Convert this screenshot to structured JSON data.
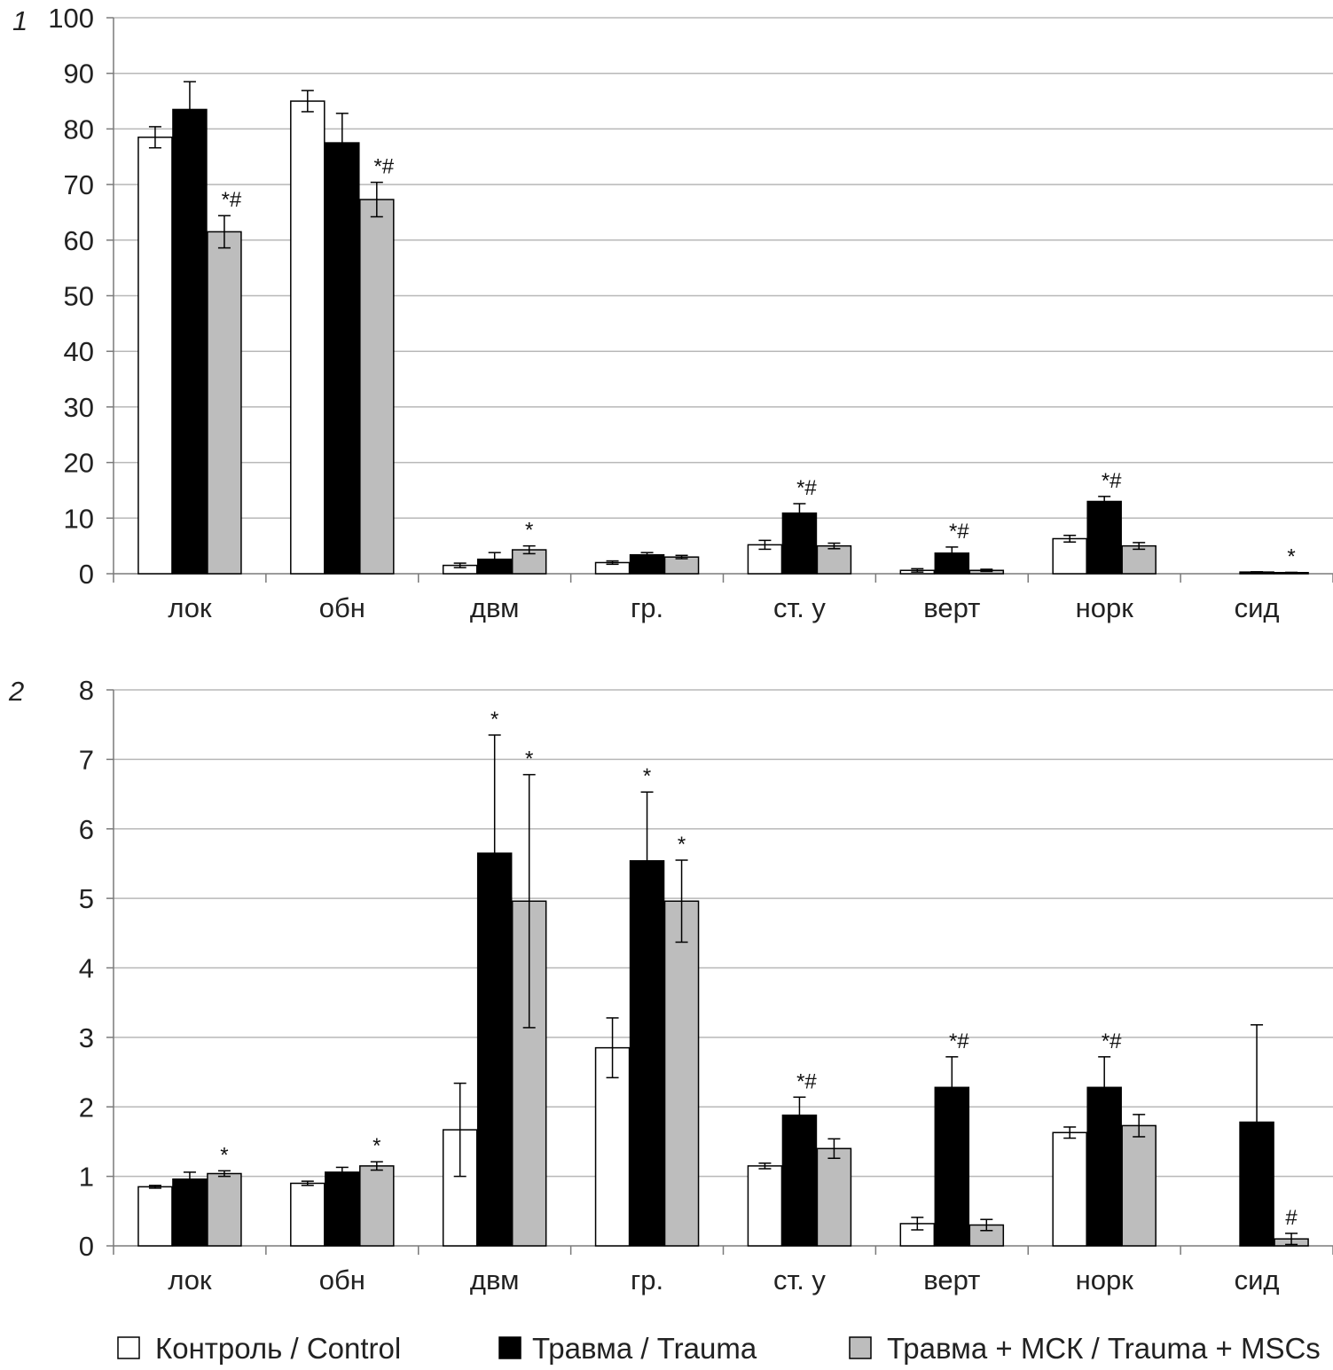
{
  "chart_data": [
    {
      "type": "bar",
      "panel_label": "1",
      "categories": [
        "лок",
        "обн",
        "двм",
        "гр.",
        "ст. у",
        "верт",
        "норк",
        "сид"
      ],
      "ylim": [
        0,
        100
      ],
      "yticks": [
        0,
        10,
        20,
        30,
        40,
        50,
        60,
        70,
        80,
        90,
        100
      ],
      "grid": true,
      "series": [
        {
          "name": "Контроль / Control",
          "values": [
            78.5,
            85.0,
            1.5,
            2.0,
            5.2,
            0.6,
            6.3,
            0.0
          ],
          "errors": [
            1.9,
            1.9,
            0.4,
            0.3,
            0.8,
            0.3,
            0.6,
            0.0
          ]
        },
        {
          "name": "Травма / Trauma",
          "values": [
            83.5,
            77.5,
            2.6,
            3.4,
            10.9,
            3.7,
            13.0,
            0.3
          ],
          "errors": [
            5.0,
            5.3,
            1.2,
            0.4,
            1.7,
            1.1,
            0.9,
            0.05
          ]
        },
        {
          "name": "Травма + МСК / Trauma + MSCs",
          "values": [
            61.5,
            67.3,
            4.3,
            3.0,
            5.0,
            0.6,
            5.0,
            0.2
          ],
          "errors": [
            2.9,
            3.1,
            0.7,
            0.3,
            0.5,
            0.2,
            0.6,
            0.05
          ]
        }
      ],
      "annotations": [
        {
          "category": "лок",
          "series": 2,
          "text": "*#"
        },
        {
          "category": "обн",
          "series": 2,
          "text": "*#"
        },
        {
          "category": "двм",
          "series": 2,
          "text": "*"
        },
        {
          "category": "ст. у",
          "series": 1,
          "text": "*#"
        },
        {
          "category": "верт",
          "series": 1,
          "text": "*#"
        },
        {
          "category": "норк",
          "series": 1,
          "text": "*#"
        },
        {
          "category": "сид",
          "series": 2,
          "text": "*"
        }
      ]
    },
    {
      "type": "bar",
      "panel_label": "2",
      "categories": [
        "лок",
        "обн",
        "двм",
        "гр.",
        "ст. у",
        "верт",
        "норк",
        "сид"
      ],
      "ylim": [
        0,
        8
      ],
      "yticks": [
        0,
        1,
        2,
        3,
        4,
        5,
        6,
        7,
        8
      ],
      "grid": true,
      "series": [
        {
          "name": "Контроль / Control",
          "values": [
            0.85,
            0.9,
            1.67,
            2.85,
            1.15,
            0.32,
            1.63,
            0.0
          ],
          "errors": [
            0.02,
            0.03,
            0.67,
            0.43,
            0.04,
            0.09,
            0.08,
            0.0
          ]
        },
        {
          "name": "Травма / Trauma",
          "values": [
            0.96,
            1.06,
            5.65,
            5.54,
            1.88,
            2.28,
            2.28,
            1.78
          ],
          "errors": [
            0.1,
            0.07,
            1.7,
            0.99,
            0.26,
            0.44,
            0.44,
            1.4
          ]
        },
        {
          "name": "Травма + МСК / Trauma + MSCs",
          "values": [
            1.04,
            1.15,
            4.96,
            4.96,
            1.4,
            0.3,
            1.73,
            0.1
          ],
          "errors": [
            0.04,
            0.06,
            1.82,
            0.59,
            0.14,
            0.08,
            0.16,
            0.08
          ]
        }
      ],
      "annotations": [
        {
          "category": "лок",
          "series": 2,
          "text": "*"
        },
        {
          "category": "обн",
          "series": 2,
          "text": "*"
        },
        {
          "category": "двм",
          "series": 1,
          "text": "*"
        },
        {
          "category": "двм",
          "series": 2,
          "text": "*"
        },
        {
          "category": "гр.",
          "series": 1,
          "text": "*"
        },
        {
          "category": "гр.",
          "series": 2,
          "text": "*"
        },
        {
          "category": "ст. у",
          "series": 1,
          "text": "*#"
        },
        {
          "category": "верт",
          "series": 1,
          "text": "*#"
        },
        {
          "category": "норк",
          "series": 1,
          "text": "*#"
        },
        {
          "category": "сид",
          "series": 2,
          "text": "#"
        }
      ]
    }
  ],
  "legend": {
    "placement": "bottom",
    "items": [
      {
        "label": "Контроль / Control",
        "color": "#ffffff"
      },
      {
        "label": "Травма / Trauma",
        "color": "#000000"
      },
      {
        "label": "Травма + МСК / Trauma + MSCs",
        "color": "#bdbdbd"
      }
    ]
  },
  "colors": {
    "control": "#ffffff",
    "trauma": "#000000",
    "msc": "#bdbdbd",
    "grid": "#b8b8b8",
    "axis": "#7a7a7a"
  }
}
